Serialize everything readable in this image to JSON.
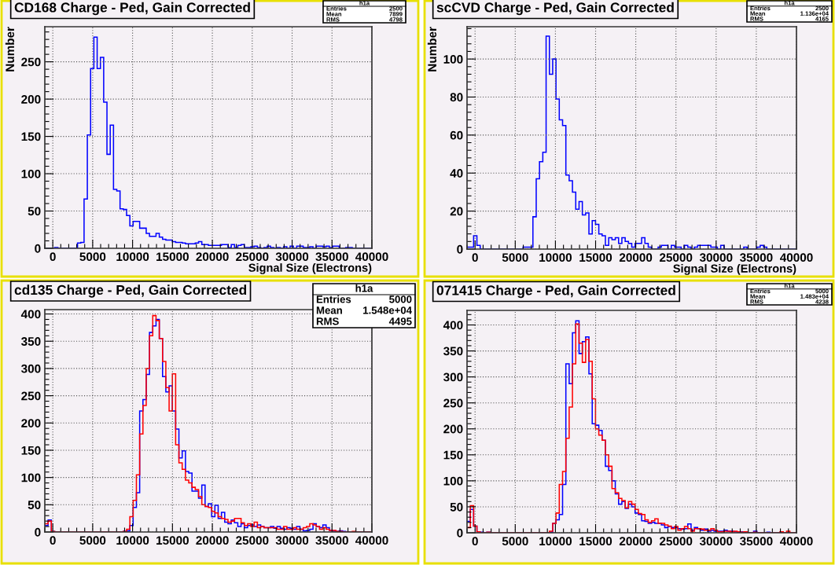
{
  "chart_data": [
    {
      "type": "histogram",
      "title": "CD168 Charge - Ped, Gain Corrected",
      "xlabel": "Signal Size (Electrons)",
      "ylabel": "Number",
      "annotations": [
        "h1a",
        "Entries",
        "2500",
        "Mean",
        "7899",
        "RMS",
        "4798"
      ],
      "bins": [
        -1000,
        -590,
        -180,
        230,
        640,
        1050,
        1460,
        1870,
        2280,
        2690,
        3100,
        3510,
        3920,
        4330,
        4740,
        5150,
        5560,
        5970,
        6380,
        6790,
        7200,
        7610,
        8020,
        8430,
        8840,
        9250,
        9660,
        10070,
        10480,
        10890,
        11300,
        11710,
        12120,
        12530,
        12940,
        13350,
        13760,
        14170,
        14580,
        14990,
        15400,
        15810,
        16220,
        16630,
        17040,
        17450,
        17860,
        18270,
        18680,
        19090,
        19500,
        19910,
        20320,
        20730,
        21140,
        21550,
        21960,
        22370,
        22780,
        23190,
        23600,
        24010,
        24420,
        24830,
        25240,
        25650,
        26060,
        26470,
        26880,
        27290,
        27700,
        28110,
        28520,
        28930,
        29340,
        29750,
        30160,
        30570,
        30980,
        31390,
        31800,
        32210,
        32620,
        33030,
        33440,
        33850,
        34260,
        34670,
        35080,
        35490,
        35900,
        36310,
        36720,
        37130,
        37540,
        37950,
        38360,
        38770,
        39180,
        39590,
        40000
      ],
      "series": [
        {
          "color": "#0000ff",
          "values": [
            0,
            0,
            0,
            1,
            0,
            0,
            0,
            0,
            0,
            0,
            7,
            8,
            66,
            152,
            241,
            283,
            241,
            256,
            196,
            126,
            165,
            79,
            77,
            53,
            52,
            44,
            30,
            36,
            36,
            27,
            27,
            20,
            16,
            16,
            20,
            15,
            12,
            11,
            11,
            9,
            8,
            8,
            7,
            6,
            6,
            6,
            7,
            9,
            5,
            5,
            4,
            4,
            4,
            4,
            5,
            5,
            1,
            5,
            1,
            4,
            5,
            1,
            1,
            2,
            3,
            1,
            0,
            1,
            3,
            1,
            0,
            1,
            0,
            2,
            0,
            3,
            0,
            3,
            3,
            1,
            1,
            2,
            0,
            3,
            3,
            2,
            3,
            1,
            3,
            3,
            0,
            0,
            1,
            1,
            0,
            0,
            0,
            0,
            0,
            0
          ]
        }
      ],
      "xlim": [
        -1000,
        40000
      ],
      "ylim": [
        0,
        297
      ],
      "xticks": [
        0,
        5000,
        10000,
        15000,
        20000,
        25000,
        30000,
        35000,
        40000
      ],
      "yticks": [
        0,
        50,
        100,
        150,
        200,
        250
      ],
      "grid": true
    },
    {
      "type": "histogram",
      "title": "scCVD Charge - Ped, Gain Corrected",
      "xlabel": "Signal Size (Electrons)",
      "ylabel": "Number",
      "annotations": [
        "h1a",
        "Entries",
        "2500",
        "Mean",
        "1.136e+04",
        "RMS",
        "4165"
      ],
      "bins": [
        -1000,
        -590,
        -180,
        230,
        640,
        1050,
        1460,
        1870,
        2280,
        2690,
        3100,
        3510,
        3920,
        4330,
        4740,
        5150,
        5560,
        5970,
        6380,
        6790,
        7200,
        7610,
        8020,
        8430,
        8840,
        9250,
        9660,
        10070,
        10480,
        10890,
        11300,
        11710,
        12120,
        12530,
        12940,
        13350,
        13760,
        14170,
        14580,
        14990,
        15400,
        15810,
        16220,
        16630,
        17040,
        17450,
        17860,
        18270,
        18680,
        19090,
        19500,
        19910,
        20320,
        20730,
        21140,
        21550,
        21960,
        22370,
        22780,
        23190,
        23600,
        24010,
        24420,
        24830,
        25240,
        25650,
        26060,
        26470,
        26880,
        27290,
        27700,
        28110,
        28520,
        28930,
        29340,
        29750,
        30160,
        30570,
        30980,
        31390,
        31800,
        32210,
        32620,
        33030,
        33440,
        33850,
        34260,
        34670,
        35080,
        35490,
        35900,
        36310,
        36720,
        37130,
        37540,
        37950,
        38360,
        38770,
        39180,
        39590,
        40000
      ],
      "series": [
        {
          "color": "#0000ff",
          "values": [
            1,
            1,
            7,
            2,
            0,
            0,
            0,
            0,
            0,
            0,
            0,
            0,
            0,
            0,
            0,
            0,
            0,
            1,
            1,
            1,
            17,
            37,
            46,
            51,
            112,
            92,
            100,
            79,
            68,
            65,
            39,
            36,
            30,
            21,
            25,
            18,
            19,
            8,
            15,
            13,
            8,
            7,
            2,
            6,
            5,
            6,
            3,
            6,
            4,
            3,
            1,
            3,
            3,
            6,
            3,
            1,
            0,
            0,
            1,
            2,
            2,
            0,
            2,
            1,
            1,
            0,
            2,
            1,
            0,
            1,
            2,
            2,
            2,
            2,
            1,
            1,
            0,
            2,
            0,
            0,
            0,
            0,
            0,
            0,
            1,
            0,
            0,
            0,
            1,
            2,
            1,
            0,
            0,
            0,
            0,
            0,
            0,
            0,
            0,
            0
          ]
        }
      ],
      "xlim": [
        -1000,
        40000
      ],
      "ylim": [
        0,
        117
      ],
      "xticks": [
        0,
        5000,
        10000,
        15000,
        20000,
        25000,
        30000,
        35000,
        40000
      ],
      "yticks": [
        0,
        20,
        40,
        60,
        80,
        100
      ],
      "grid": true
    },
    {
      "type": "histogram",
      "title": "cd135 Charge - Ped, Gain Corrected",
      "annotations": [
        "h1a",
        "Entries",
        "5000",
        "Mean",
        "1.548e+04",
        "RMS",
        "4495"
      ],
      "bins": [
        -1000,
        -590,
        -180,
        230,
        640,
        1050,
        1460,
        1870,
        2280,
        2690,
        3100,
        3510,
        3920,
        4330,
        4740,
        5150,
        5560,
        5970,
        6380,
        6790,
        7200,
        7610,
        8020,
        8430,
        8840,
        9250,
        9660,
        10070,
        10480,
        10890,
        11300,
        11710,
        12120,
        12530,
        12940,
        13350,
        13760,
        14170,
        14580,
        14990,
        15400,
        15810,
        16220,
        16630,
        17040,
        17450,
        17860,
        18270,
        18680,
        19090,
        19500,
        19910,
        20320,
        20730,
        21140,
        21550,
        21960,
        22370,
        22780,
        23190,
        23600,
        24010,
        24420,
        24830,
        25240,
        25650,
        26060,
        26470,
        26880,
        27290,
        27700,
        28110,
        28520,
        28930,
        29340,
        29750,
        30160,
        30570,
        30980,
        31390,
        31800,
        32210,
        32620,
        33030,
        33440,
        33850,
        34260,
        34670,
        35080,
        35490,
        35900,
        36310,
        36720,
        37130,
        37540,
        37950,
        38360,
        38770,
        39180,
        39590,
        40000
      ],
      "series": [
        {
          "color": "#0000ff",
          "values": [
            12,
            22,
            1,
            0,
            0,
            0,
            0,
            0,
            0,
            0,
            0,
            0,
            0,
            0,
            0,
            0,
            0,
            0,
            0,
            0,
            0,
            0,
            0,
            0,
            1,
            2,
            12,
            45,
            72,
            222,
            243,
            289,
            366,
            378,
            390,
            355,
            285,
            257,
            268,
            222,
            189,
            136,
            149,
            111,
            108,
            75,
            75,
            62,
            86,
            47,
            52,
            28,
            49,
            25,
            36,
            18,
            15,
            22,
            17,
            10,
            15,
            8,
            12,
            13,
            10,
            13,
            10,
            8,
            8,
            10,
            7,
            10,
            7,
            5,
            8,
            7,
            5,
            10,
            5,
            2,
            3,
            5,
            15,
            10,
            8,
            13,
            8,
            3,
            2,
            1,
            2,
            1,
            0,
            0,
            0,
            0,
            0,
            0,
            0,
            0
          ]
        },
        {
          "color": "#ff0000",
          "values": [
            15,
            20,
            1,
            0,
            0,
            0,
            0,
            0,
            0,
            0,
            0,
            0,
            0,
            0,
            0,
            0,
            0,
            0,
            0,
            0,
            0,
            0,
            0,
            0,
            1,
            5,
            28,
            58,
            105,
            180,
            232,
            300,
            360,
            397,
            388,
            355,
            313,
            265,
            222,
            290,
            160,
            127,
            115,
            95,
            90,
            82,
            78,
            65,
            50,
            47,
            45,
            38,
            35,
            28,
            25,
            23,
            18,
            20,
            25,
            25,
            17,
            12,
            15,
            10,
            18,
            8,
            10,
            8,
            8,
            8,
            8,
            5,
            5,
            10,
            5,
            5,
            8,
            5,
            5,
            8,
            10,
            15,
            13,
            10,
            5,
            8,
            5,
            3,
            3,
            1,
            1,
            0,
            0,
            0,
            1,
            0,
            0,
            0,
            0,
            0
          ]
        }
      ],
      "xlim": [
        -1000,
        40000
      ],
      "ylim": [
        0,
        408
      ],
      "xticks": [
        0,
        5000,
        10000,
        15000,
        20000,
        25000,
        30000,
        35000,
        40000
      ],
      "yticks": [
        0,
        50,
        100,
        150,
        200,
        250,
        300,
        350,
        400
      ],
      "grid": true
    },
    {
      "type": "histogram",
      "title": "071415 Charge - Ped, Gain Corrected",
      "annotations": [
        "h1a",
        "Entries",
        "5000",
        "Mean",
        "1.483e+04",
        "RMS",
        "4238"
      ],
      "bins": [
        -1000,
        -590,
        -180,
        230,
        640,
        1050,
        1460,
        1870,
        2280,
        2690,
        3100,
        3510,
        3920,
        4330,
        4740,
        5150,
        5560,
        5970,
        6380,
        6790,
        7200,
        7610,
        8020,
        8430,
        8840,
        9250,
        9660,
        10070,
        10480,
        10890,
        11300,
        11710,
        12120,
        12530,
        12940,
        13350,
        13760,
        14170,
        14580,
        14990,
        15400,
        15810,
        16220,
        16630,
        17040,
        17450,
        17860,
        18270,
        18680,
        19090,
        19500,
        19910,
        20320,
        20730,
        21140,
        21550,
        21960,
        22370,
        22780,
        23190,
        23600,
        24010,
        24420,
        24830,
        25240,
        25650,
        26060,
        26470,
        26880,
        27290,
        27700,
        28110,
        28520,
        28930,
        29340,
        29750,
        30160,
        30570,
        30980,
        31390,
        31800,
        32210,
        32620,
        33030,
        33440,
        33850,
        34260,
        34670,
        35080,
        35490,
        35900,
        36310,
        36720,
        37130,
        37540,
        37950,
        38360,
        38770,
        39180,
        39590,
        40000
      ],
      "series": [
        {
          "color": "#0000ff",
          "values": [
            22,
            45,
            13,
            2,
            1,
            0,
            1,
            0,
            0,
            0,
            0,
            0,
            0,
            0,
            0,
            0,
            0,
            0,
            0,
            0,
            0,
            0,
            0,
            0,
            0,
            1,
            18,
            25,
            35,
            93,
            325,
            287,
            385,
            408,
            345,
            368,
            377,
            306,
            210,
            207,
            197,
            178,
            128,
            120,
            100,
            75,
            55,
            60,
            47,
            55,
            50,
            38,
            35,
            23,
            22,
            18,
            20,
            18,
            18,
            15,
            10,
            12,
            10,
            10,
            8,
            7,
            8,
            17,
            5,
            10,
            8,
            5,
            7,
            3,
            5,
            3,
            3,
            3,
            5,
            3,
            3,
            2,
            1,
            2,
            1,
            0,
            0,
            3,
            0,
            0,
            0,
            1,
            0,
            0,
            0,
            1,
            0,
            0,
            0,
            0
          ]
        },
        {
          "color": "#ff0000",
          "values": [
            10,
            52,
            13,
            2,
            0,
            0,
            1,
            0,
            0,
            0,
            0,
            0,
            0,
            0,
            0,
            0,
            0,
            0,
            0,
            0,
            0,
            0,
            0,
            0,
            0,
            3,
            18,
            38,
            93,
            118,
            182,
            242,
            325,
            402,
            365,
            328,
            372,
            330,
            258,
            200,
            188,
            178,
            150,
            128,
            85,
            77,
            66,
            62,
            48,
            60,
            55,
            45,
            37,
            35,
            25,
            20,
            23,
            27,
            18,
            18,
            15,
            13,
            8,
            12,
            5,
            8,
            12,
            8,
            3,
            8,
            8,
            7,
            5,
            5,
            8,
            5,
            2,
            2,
            3,
            3,
            2,
            3,
            2,
            1,
            2,
            0,
            0,
            1,
            0,
            0,
            0,
            0,
            0,
            0,
            0,
            2,
            0,
            3,
            0,
            0
          ]
        }
      ],
      "xlim": [
        -1000,
        40000
      ],
      "ylim": [
        0,
        428
      ],
      "xticks": [
        0,
        5000,
        10000,
        15000,
        20000,
        25000,
        30000,
        35000,
        40000
      ],
      "yticks": [
        0,
        50,
        100,
        150,
        200,
        250,
        300,
        350,
        400
      ],
      "grid": true
    }
  ]
}
